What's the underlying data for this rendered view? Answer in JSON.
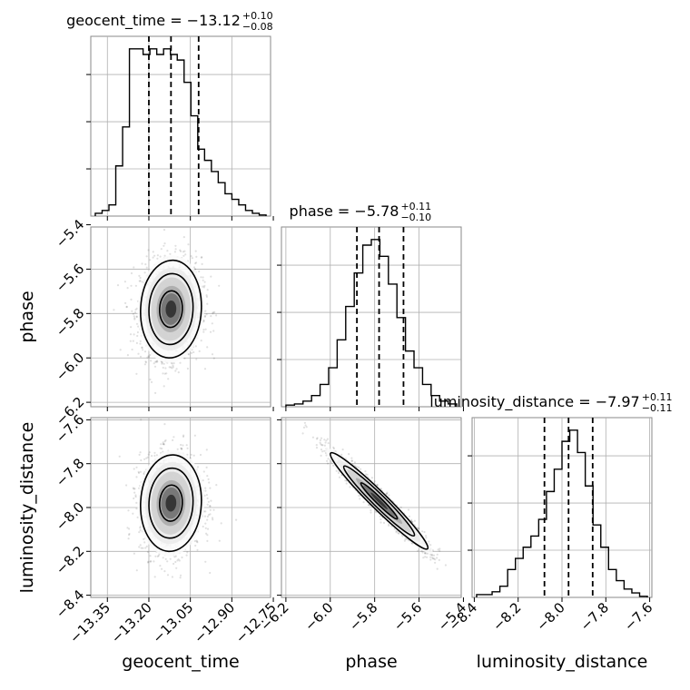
{
  "chart_data": {
    "type": "corner",
    "parameters": [
      {
        "name": "geocent_time",
        "title": "geocent_time = −13.12",
        "median": -13.12,
        "err_plus": "+0.10",
        "err_minus": "−0.08",
        "quantiles": [
          -13.2,
          -13.12,
          -13.02
        ],
        "range": [
          -13.41,
          -12.76
        ],
        "ticks": [
          -13.35,
          -13.2,
          -13.05,
          -12.9,
          -12.75
        ],
        "tick_labels": [
          "−13.35",
          "−13.20",
          "−13.05",
          "−12.90",
          "−12.75"
        ],
        "hist": [
          0.5,
          1,
          2,
          9,
          16,
          30,
          30,
          29,
          30,
          29,
          30,
          29,
          28,
          24,
          18,
          12,
          10,
          8,
          6,
          4,
          3,
          2,
          1,
          0.5,
          0.2
        ],
        "hist_max": 30
      },
      {
        "name": "phase",
        "title": "phase = −5.78",
        "median": -5.78,
        "err_plus": "+0.11",
        "err_minus": "−0.10",
        "quantiles": [
          -5.88,
          -5.78,
          -5.67
        ],
        "range": [
          -6.22,
          -5.41
        ],
        "ticks": [
          -6.2,
          -6.0,
          -5.8,
          -5.6,
          -5.4
        ],
        "tick_labels": [
          "−6.2",
          "−6.0",
          "−5.8",
          "−5.6",
          "−5.4"
        ],
        "hist": [
          0.3,
          0.5,
          1,
          2,
          4,
          7,
          12,
          18,
          24,
          29,
          30,
          27,
          22,
          16,
          10,
          7,
          4,
          2,
          1,
          0.5
        ],
        "hist_max": 30
      },
      {
        "name": "luminosity_distance",
        "title": "luminosity_distance = −7.97",
        "median": -7.97,
        "err_plus": "+0.11",
        "err_minus": "−0.11",
        "quantiles": [
          -8.08,
          -7.97,
          -7.86
        ],
        "range": [
          -8.41,
          -7.59
        ],
        "ticks": [
          -8.4,
          -8.2,
          -8.0,
          -7.8,
          -7.6
        ],
        "tick_labels": [
          "−8.4",
          "−8.2",
          "−8.0",
          "−7.8",
          "−7.6"
        ],
        "hist": [
          0.5,
          0.5,
          1,
          2,
          5,
          7,
          9,
          11,
          14,
          19,
          23,
          28,
          30,
          26,
          20,
          13,
          9,
          5,
          3,
          1.5,
          0.8,
          0.2
        ],
        "hist_max": 30
      }
    ],
    "pairs": [
      {
        "x": 0,
        "y": 1,
        "center": [
          -13.12,
          -5.78
        ],
        "sigma": [
          0.055,
          0.11
        ],
        "rho": 0.05
      },
      {
        "x": 0,
        "y": 2,
        "center": [
          -13.12,
          -7.98
        ],
        "sigma": [
          0.055,
          0.11
        ],
        "rho": 0.05
      },
      {
        "x": 1,
        "y": 2,
        "center": [
          -5.78,
          -7.97
        ],
        "sigma": [
          0.11,
          0.11
        ],
        "rho": -0.97
      }
    ],
    "grid": true,
    "levels": [
      0.5,
      1.0,
      1.5
    ]
  }
}
